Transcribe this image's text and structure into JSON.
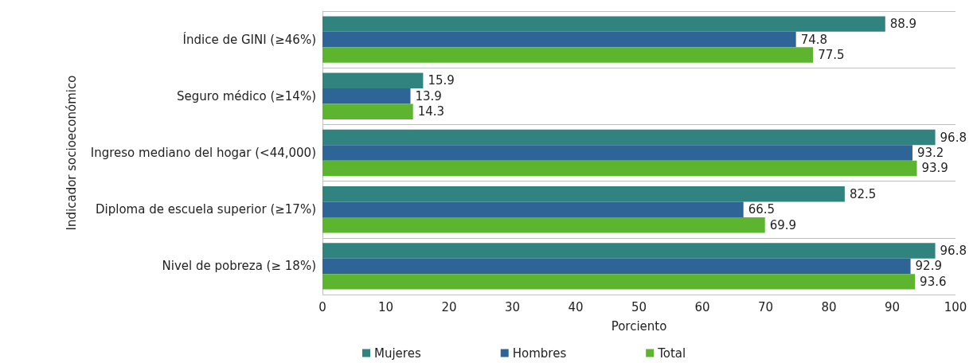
{
  "chart_data": {
    "type": "bar",
    "orientation": "horizontal",
    "xlabel": "Porciento",
    "ylabel": "Indicador socioeconómico",
    "categories": [
      "Índice de GINI (≥46%)",
      "Seguro médico (≥14%)",
      "Ingreso mediano del hogar (<44,000)",
      "Diploma de escuela superior (≥17%)",
      "Nivel de pobreza (≥ 18%)"
    ],
    "series": [
      {
        "name": "Mujeres",
        "color": "#31837f",
        "values": [
          88.9,
          15.9,
          96.8,
          82.5,
          96.8
        ]
      },
      {
        "name": "Hombres",
        "color": "#2e6596",
        "values": [
          74.8,
          13.9,
          93.2,
          66.5,
          92.9
        ]
      },
      {
        "name": "Total",
        "color": "#5db42f",
        "values": [
          77.5,
          14.3,
          93.9,
          69.9,
          93.6
        ]
      }
    ],
    "xlim": [
      0,
      100
    ],
    "xticks": [
      0,
      10,
      20,
      30,
      40,
      50,
      60,
      70,
      80,
      90,
      100
    ],
    "grid": "y",
    "legend": "bottom",
    "data_labels": true
  }
}
